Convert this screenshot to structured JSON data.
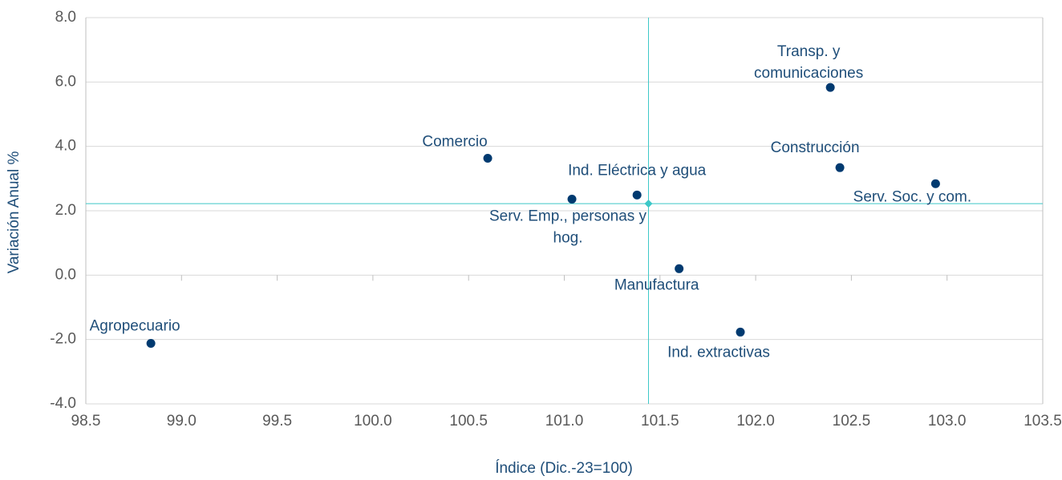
{
  "chart_data": {
    "type": "scatter",
    "xlabel": "Índice (Dic.-23=100)",
    "ylabel": "Variación Anual %",
    "series": [
      {
        "color": "#003a70",
        "x": [
          98.84,
          100.6,
          101.04,
          101.38,
          101.6,
          101.92,
          102.39,
          102.44,
          102.94
        ],
        "values": [
          -2.12,
          3.63,
          2.36,
          2.49,
          0.2,
          -1.77,
          5.83,
          3.34,
          2.84
        ],
        "labels": [
          [
            "Agropecuario"
          ],
          [
            "Comercio"
          ],
          [
            "Serv. Emp., personas y",
            "hog."
          ],
          [
            "Ind. Eléctrica y agua"
          ],
          [
            "Manufactura"
          ],
          [
            "Ind. extractivas"
          ],
          [
            "Transp. y",
            "comunicaciones"
          ],
          [
            "Construcción"
          ],
          [
            "Serv. Soc. y com."
          ]
        ]
      }
    ],
    "reference_point": {
      "x": 101.44,
      "y": 2.22,
      "color": "#3cc8c8"
    },
    "xlim": [
      98.5,
      103.5
    ],
    "xticks": [
      98.5,
      {
        "value": 99,
        "label": "99.0"
      },
      99.5,
      {
        "value": 100,
        "label": "100.0"
      },
      100.5,
      {
        "value": 101,
        "label": "101.0"
      },
      101.5,
      {
        "value": 102,
        "label": "102.0"
      },
      102.5,
      {
        "value": 103,
        "label": "103.0"
      },
      103.5
    ],
    "ylim": [
      -4,
      8
    ],
    "yticks": [
      {
        "value": -4,
        "label": "-4.0"
      },
      {
        "value": -2,
        "label": "-2.0"
      },
      {
        "value": 0,
        "label": "0.0"
      },
      {
        "value": 2,
        "label": "2.0"
      },
      {
        "value": 4,
        "label": "4.0"
      },
      {
        "value": 6,
        "label": "6.0"
      },
      {
        "value": 8,
        "label": "8.0"
      }
    ],
    "grid": true
  }
}
